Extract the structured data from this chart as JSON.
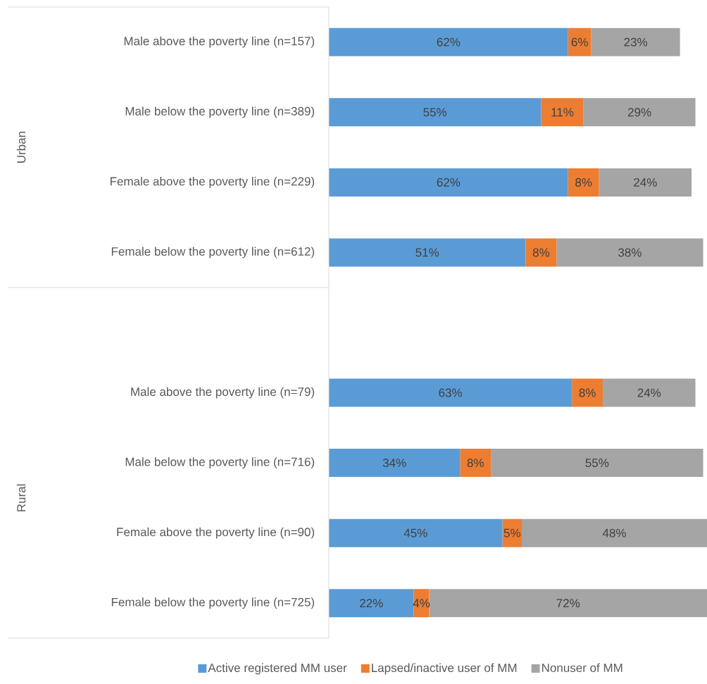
{
  "chart_data": {
    "type": "bar",
    "orientation": "horizontal",
    "stacked": true,
    "legend": "bottom",
    "categories": [
      "Male above the poverty line (n=157)",
      "Male below the poverty line (n=389)",
      "Female above the poverty line (n=229)",
      "Female below the poverty line (n=612)",
      null,
      "Male above the poverty line (n=79)",
      "Male below the poverty line (n=716)",
      "Female above the poverty line (n=90)",
      "Female below the poverty line (n=725)"
    ],
    "annotations": [
      "Urban",
      "Rural"
    ],
    "series": [
      {
        "name": "Active registered MM user",
        "color": "#5b9bd5",
        "values": [
          62,
          55,
          62,
          51,
          null,
          63,
          34,
          45,
          22
        ],
        "value_labels": [
          "62%",
          "55%",
          "62%",
          "51%",
          null,
          "63%",
          "34%",
          "45%",
          "22%"
        ]
      },
      {
        "name": "Lapsed/inactive user of MM",
        "color": "#ed7d31",
        "values": [
          6,
          11,
          8,
          8,
          null,
          8,
          8,
          5,
          4
        ],
        "value_labels": [
          "6%",
          "11%",
          "8%",
          "8%",
          null,
          "8%",
          "8%",
          "5%",
          "4%"
        ]
      },
      {
        "name": "Nonuser of MM",
        "color": "#a5a5a5",
        "values": [
          23,
          29,
          24,
          38,
          null,
          24,
          55,
          48,
          72
        ],
        "value_labels": [
          "23%",
          "29%",
          "24%",
          "38%",
          null,
          "24%",
          "55%",
          "48%",
          "72%"
        ]
      }
    ]
  }
}
